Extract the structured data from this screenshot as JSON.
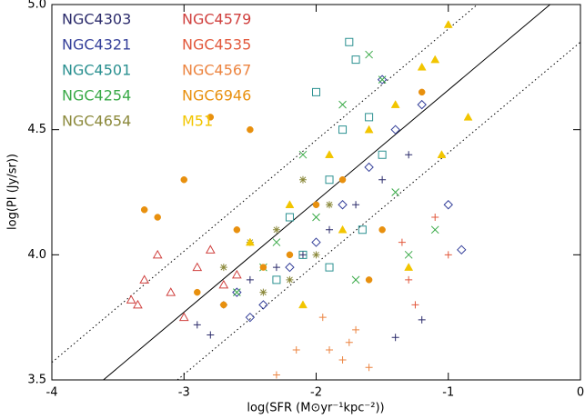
{
  "chart_data": {
    "type": "scatter",
    "xlabel": "log(SFR (M⊙yr⁻¹kpc⁻²))",
    "ylabel": "log(PI (Jy/sr))",
    "xlim": [
      -4,
      0
    ],
    "ylim": [
      3.5,
      5.0
    ],
    "xticks": [
      -4,
      -3,
      -2,
      -1,
      0
    ],
    "yticks": [
      3.5,
      {
        "value": 4.0,
        "label": "4.0"
      },
      4.5,
      {
        "value": 5.0,
        "label": "5.0"
      }
    ],
    "legend": "upper left",
    "lines": [
      {
        "style": "solid",
        "x": [
          -3.61,
          -0.23
        ],
        "y": [
          3.5,
          5.0
        ]
      },
      {
        "style": "dotted",
        "x": [
          -4,
          -0.78
        ],
        "y": [
          3.57,
          5.0
        ]
      },
      {
        "style": "dotted",
        "x": [
          -3.05,
          0
        ],
        "y": [
          3.5,
          4.85
        ]
      }
    ],
    "series": [
      {
        "name": "NGC4303",
        "color": "#2b2b6b",
        "marker": "plus",
        "x": [
          -2.9,
          -2.7,
          -2.5,
          -2.3,
          -2.1,
          -1.9,
          -1.7,
          -1.5,
          -1.3,
          -1.2,
          -2.8,
          -1.4
        ],
        "values": [
          3.72,
          3.8,
          3.9,
          3.95,
          4.0,
          4.1,
          4.2,
          4.3,
          4.4,
          3.74,
          3.68,
          3.67
        ]
      },
      {
        "name": "NGC4321",
        "color": "#35409a",
        "marker": "diamond",
        "x": [
          -2.6,
          -2.4,
          -2.2,
          -2.0,
          -1.8,
          -1.6,
          -1.4,
          -1.2,
          -1.0,
          -0.9,
          -1.5,
          -2.5
        ],
        "values": [
          3.85,
          3.8,
          3.95,
          4.05,
          4.2,
          4.35,
          4.5,
          4.6,
          4.2,
          4.02,
          4.7,
          3.75
        ]
      },
      {
        "name": "NGC4501",
        "color": "#2a9090",
        "marker": "square",
        "x": [
          -2.3,
          -2.1,
          -1.9,
          -1.75,
          -1.7,
          -1.6,
          -1.8,
          -2.0,
          -1.9,
          -1.65,
          -1.5,
          -2.2
        ],
        "values": [
          3.9,
          4.0,
          4.3,
          4.85,
          4.78,
          4.55,
          4.5,
          4.65,
          3.95,
          4.1,
          4.4,
          4.15
        ]
      },
      {
        "name": "NGC4254",
        "color": "#3aaa48",
        "marker": "cross",
        "x": [
          -2.6,
          -2.3,
          -2.0,
          -1.8,
          -1.5,
          -1.3,
          -1.1,
          -2.1,
          -1.7,
          -1.4,
          -2.4,
          -1.6
        ],
        "values": [
          3.85,
          4.05,
          4.15,
          4.6,
          4.7,
          4.0,
          4.1,
          4.4,
          3.9,
          4.25,
          3.95,
          4.8
        ]
      },
      {
        "name": "NGC4654",
        "color": "#8c8a3c",
        "marker": "asterisk",
        "x": [
          -2.7,
          -2.5,
          -2.3,
          -2.1,
          -1.9,
          -2.4,
          -2.2,
          -2.0
        ],
        "values": [
          3.95,
          4.05,
          4.1,
          4.3,
          4.2,
          3.85,
          3.9,
          4.0
        ]
      },
      {
        "name": "NGC4579",
        "color": "#d0413f",
        "marker": "triangle-open",
        "x": [
          -3.4,
          -3.3,
          -3.2,
          -3.1,
          -2.9,
          -2.8,
          -2.7,
          -3.35,
          -3.0,
          -2.6
        ],
        "values": [
          3.82,
          3.9,
          4.0,
          3.85,
          3.95,
          4.02,
          3.88,
          3.8,
          3.75,
          3.92
        ]
      },
      {
        "name": "NGC4535",
        "color": "#e2583c",
        "marker": "plus",
        "x": [
          -1.3,
          -1.1,
          -1.25,
          -1.0,
          -1.35
        ],
        "values": [
          3.9,
          4.15,
          3.8,
          4.0,
          4.05
        ]
      },
      {
        "name": "NGC4567",
        "color": "#ec8440",
        "marker": "plus",
        "x": [
          -1.9,
          -1.8,
          -1.7,
          -1.6,
          -1.75,
          -2.3,
          -1.95,
          -2.15
        ],
        "values": [
          3.62,
          3.58,
          3.7,
          3.55,
          3.65,
          3.52,
          3.75,
          3.62
        ]
      },
      {
        "name": "NGC6946",
        "color": "#e8900e",
        "marker": "circle",
        "x": [
          -3.2,
          -3.0,
          -2.8,
          -2.6,
          -2.4,
          -2.2,
          -2.0,
          -1.8,
          -2.5,
          -2.9,
          -1.5,
          -1.2,
          -2.7,
          -3.3,
          -1.6
        ],
        "values": [
          4.15,
          4.3,
          4.55,
          4.1,
          3.95,
          4.0,
          4.2,
          4.3,
          4.5,
          3.85,
          4.1,
          4.65,
          3.8,
          4.18,
          3.9
        ]
      },
      {
        "name": "M51",
        "color": "#f2c500",
        "marker": "triangle",
        "x": [
          -2.5,
          -2.2,
          -1.9,
          -1.6,
          -1.4,
          -1.2,
          -1.0,
          -0.85,
          -1.05,
          -1.3,
          -2.1,
          -1.8,
          -1.1
        ],
        "values": [
          4.05,
          4.2,
          4.4,
          4.5,
          4.6,
          4.75,
          4.92,
          4.55,
          4.4,
          3.95,
          3.8,
          4.1,
          4.78
        ]
      }
    ]
  }
}
